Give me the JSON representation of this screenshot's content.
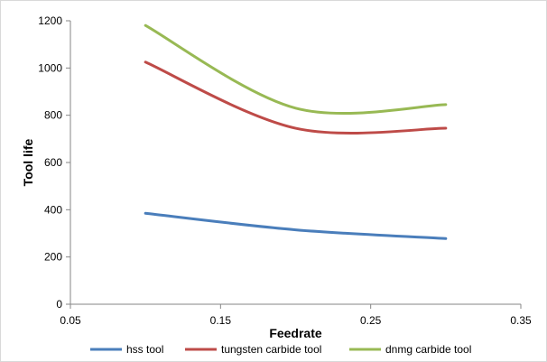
{
  "chart_data": {
    "type": "line",
    "title": "",
    "xlabel": "Feedrate",
    "ylabel": "Tool life",
    "xlim": [
      0.05,
      0.35
    ],
    "ylim": [
      0,
      1200
    ],
    "x_ticks": [
      "0.05",
      "0.15",
      "0.25",
      "0.35"
    ],
    "y_ticks": [
      "0",
      "200",
      "400",
      "600",
      "800",
      "1000",
      "1200"
    ],
    "grid": false,
    "legend_position": "bottom",
    "x": [
      0.1,
      0.2,
      0.3
    ],
    "series": [
      {
        "name": "hss tool",
        "values": [
          385,
          315,
          278
        ],
        "color": "#4a7ebb"
      },
      {
        "name": "tungsten carbide tool",
        "values": [
          1025,
          745,
          745
        ],
        "color": "#be4b48"
      },
      {
        "name": "dnmg carbide tool",
        "values": [
          1180,
          830,
          845
        ],
        "color": "#98b954"
      }
    ]
  }
}
